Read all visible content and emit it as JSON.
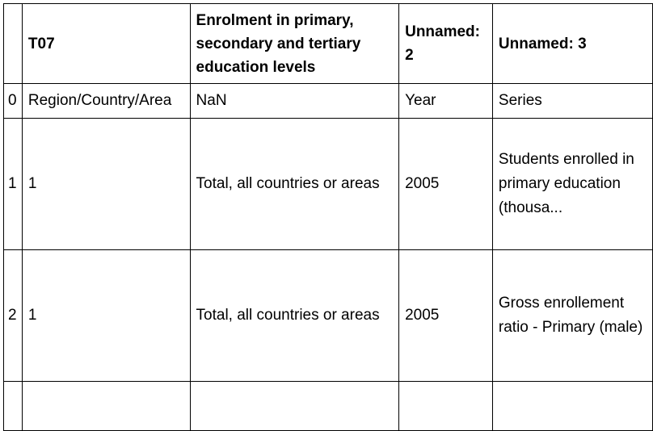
{
  "table": {
    "columns": [
      "",
      "T07",
      "Enrolment in primary, secondary and tertiary education levels",
      "Unnamed: 2",
      "Unnamed: 3"
    ],
    "rows": [
      {
        "index": "0",
        "cells": [
          "Region/Country/Area",
          "NaN",
          "Year",
          "Series"
        ]
      },
      {
        "index": "1",
        "cells": [
          "1",
          "Total, all countries or areas",
          "2005",
          "Students enrolled in primary education (thousa..."
        ]
      },
      {
        "index": "2",
        "cells": [
          "1",
          "Total, all countries or areas",
          "2005",
          "Gross enrollement ratio - Primary (male)"
        ]
      },
      {
        "index": "",
        "cells": [
          "",
          "",
          "",
          ""
        ]
      }
    ]
  }
}
